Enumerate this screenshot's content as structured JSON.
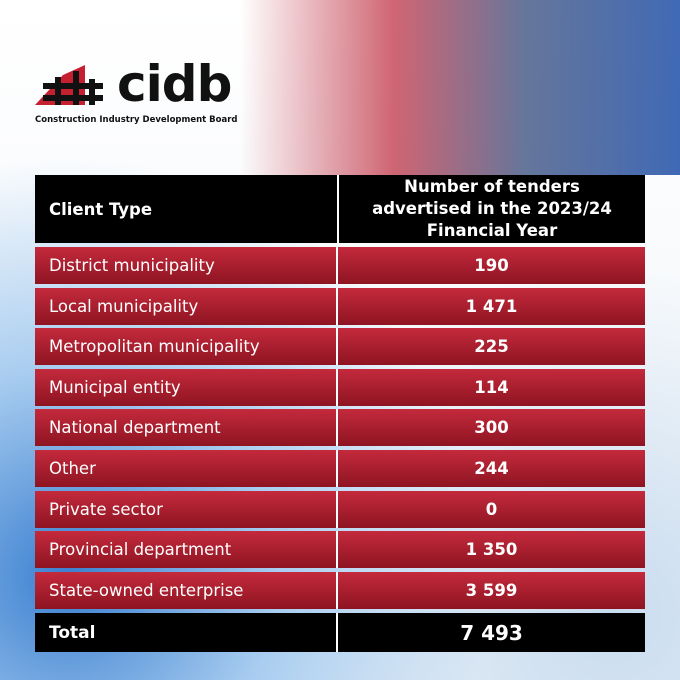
{
  "header": {
    "logo": "cidb",
    "organisation": "Construction Industry Development Board"
  },
  "table": {
    "columns": [
      "Client Type",
      "Number of tenders advertised in the 2023/24 Financial Year"
    ],
    "rows": [
      [
        "District municipality",
        "190"
      ],
      [
        "Local municipality",
        "1 471"
      ],
      [
        "Metropolitan municipality",
        "225"
      ],
      [
        "Municipal entity",
        "114"
      ],
      [
        "National department",
        "300"
      ],
      [
        "Other",
        "244"
      ],
      [
        "Private sector",
        "0"
      ],
      [
        "Provincial department",
        "1 350"
      ],
      [
        "State-owned enterprise",
        "3 599"
      ]
    ],
    "total": [
      "Total",
      "7 493"
    ]
  }
}
